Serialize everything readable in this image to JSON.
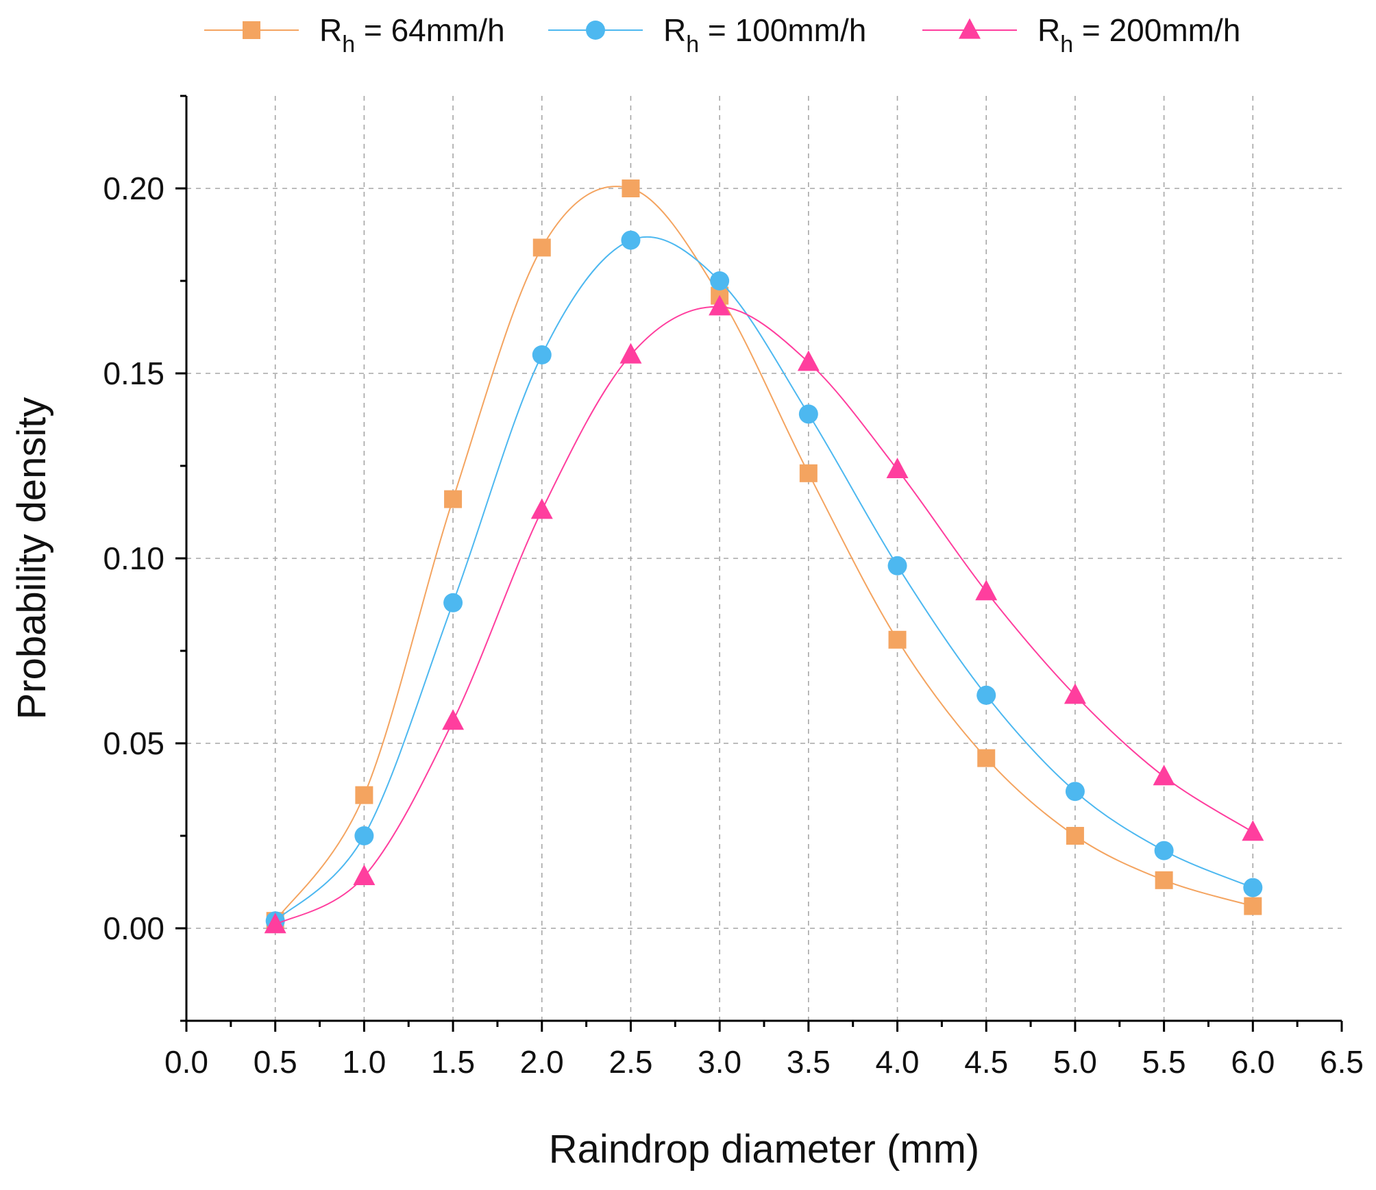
{
  "chart_data": {
    "type": "line",
    "title": "",
    "xlabel": "Raindrop diameter (mm)",
    "ylabel": "Probability density",
    "xlim": [
      0,
      6.5
    ],
    "ylim": [
      -0.025,
      0.225
    ],
    "x_ticks": [
      "0.0",
      "0.5",
      "1.0",
      "1.5",
      "2.0",
      "2.5",
      "3.0",
      "3.5",
      "4.0",
      "4.5",
      "5.0",
      "5.5",
      "6.0",
      "6.5"
    ],
    "y_ticks": [
      "0.00",
      "0.05",
      "0.10",
      "0.15",
      "0.20"
    ],
    "grid": true,
    "legend_position": "top",
    "x": [
      0.5,
      1.0,
      1.5,
      2.0,
      2.5,
      3.0,
      3.5,
      4.0,
      4.5,
      5.0,
      5.5,
      6.0
    ],
    "series": [
      {
        "name": "Rh = 64mm/h",
        "legend_main": "R",
        "legend_sub": "h",
        "legend_rest": " = 64mm/h",
        "marker": "square",
        "color": "#F4A460",
        "values": [
          0.002,
          0.036,
          0.116,
          0.184,
          0.2,
          0.171,
          0.123,
          0.078,
          0.046,
          0.025,
          0.013,
          0.006
        ]
      },
      {
        "name": "Rh = 100mm/h",
        "legend_main": "R",
        "legend_sub": "h",
        "legend_rest": "  = 100mm/h",
        "marker": "circle",
        "color": "#4DB8F0",
        "values": [
          0.002,
          0.025,
          0.088,
          0.155,
          0.186,
          0.175,
          0.139,
          0.098,
          0.063,
          0.037,
          0.021,
          0.011
        ]
      },
      {
        "name": "Rh = 200mm/h",
        "legend_main": "R",
        "legend_sub": "h",
        "legend_rest": "  = 200mm/h",
        "marker": "triangle",
        "color": "#FF3E9E",
        "values": [
          0.001,
          0.014,
          0.056,
          0.113,
          0.155,
          0.168,
          0.153,
          0.124,
          0.091,
          0.063,
          0.041,
          0.026
        ]
      }
    ]
  }
}
